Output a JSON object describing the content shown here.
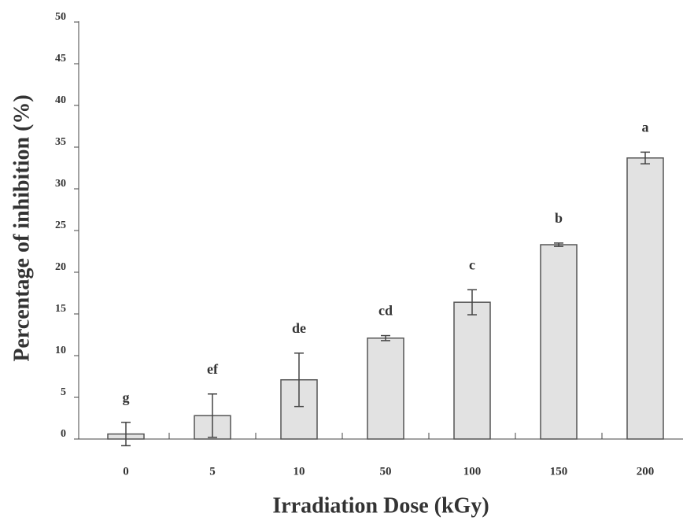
{
  "chart_data": {
    "type": "bar",
    "xlabel": "Irradiation Dose (kGy)",
    "ylabel": "Percentage of inhibition (%)",
    "categories": [
      "0",
      "5",
      "10",
      "50",
      "100",
      "150",
      "200"
    ],
    "values": [
      0.6,
      2.8,
      7.1,
      12.1,
      16.4,
      23.3,
      33.7
    ],
    "errors": [
      1.4,
      2.6,
      3.2,
      0.3,
      1.5,
      0.2,
      0.7
    ],
    "annotations": [
      "g",
      "ef",
      "de",
      "cd",
      "c",
      "b",
      "a"
    ],
    "color": "#e2e2e2",
    "ylim": [
      0,
      50
    ],
    "yticks": [
      0,
      5,
      10,
      15,
      20,
      25,
      30,
      35,
      40,
      45,
      50
    ],
    "grid": false
  }
}
